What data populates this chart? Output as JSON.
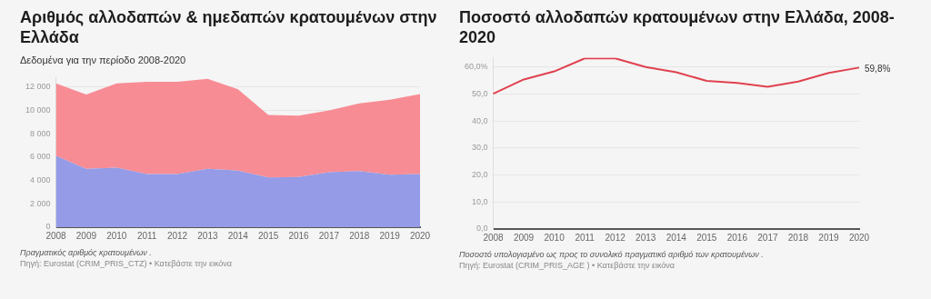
{
  "chart_data": [
    {
      "type": "area",
      "title": "Αριθμός αλλοδαπών & ημεδαπών κρατουμένων στην Ελλάδα",
      "subtitle": "Δεδομένα για την περίοδο 2008-2020",
      "categories": [
        "2008",
        "2009",
        "2010",
        "2011",
        "2012",
        "2013",
        "2014",
        "2015",
        "2016",
        "2017",
        "2018",
        "2019",
        "2020"
      ],
      "stacked": true,
      "series": [
        {
          "color": "#959be6",
          "values": [
            6100,
            5000,
            5100,
            4550,
            4550,
            5000,
            4850,
            4250,
            4300,
            4700,
            4800,
            4500,
            4550
          ]
        },
        {
          "color": "#f88c94",
          "values": [
            6200,
            6350,
            7200,
            7900,
            7900,
            7700,
            6950,
            5350,
            5250,
            5300,
            5800,
            6400,
            6850
          ]
        }
      ],
      "ylim": [
        0,
        12800
      ],
      "yticks": [
        0,
        {
          "value": 2000,
          "label": "2 000"
        },
        {
          "value": 4000,
          "label": "4 000"
        },
        {
          "value": 6000,
          "label": "6 000"
        },
        {
          "value": 8000,
          "label": "8 000"
        },
        {
          "value": 10000,
          "label": "10 000"
        },
        {
          "value": 12000,
          "label": "12 000"
        }
      ],
      "grid": "y",
      "annotations": [
        "Πραγματικός αριθμός κρατουμένων .",
        "Πηγή: Eurostat (CRIM_PRIS_CTZ) • Κατεβάστε την εικόνα"
      ]
    },
    {
      "type": "line",
      "title": "Ποσοστό αλλοδαπών κρατουμένων στην Ελλάδα, 2008-2020",
      "categories": [
        "2008",
        "2009",
        "2010",
        "2011",
        "2012",
        "2013",
        "2014",
        "2015",
        "2016",
        "2017",
        "2018",
        "2019",
        "2020"
      ],
      "series": [
        {
          "color": "#e0414f",
          "values": [
            50.1,
            55.4,
            58.4,
            63.2,
            63.2,
            60.0,
            58.1,
            54.9,
            54.1,
            52.7,
            54.6,
            57.8,
            59.8
          ],
          "value_labels": [
            null,
            null,
            null,
            null,
            null,
            null,
            null,
            null,
            null,
            null,
            null,
            null,
            "59,8%"
          ]
        }
      ],
      "ylim": [
        0,
        63.5
      ],
      "yticks": [
        {
          "value": 0,
          "label": "0,0"
        },
        {
          "value": 10,
          "label": "10,0"
        },
        {
          "value": 20,
          "label": "20,0"
        },
        {
          "value": 30,
          "label": "30,0"
        },
        {
          "value": 40,
          "label": "40,0"
        },
        {
          "value": 50,
          "label": "50,0"
        },
        {
          "value": 60,
          "label": "60,0%"
        }
      ],
      "grid": "y",
      "annotations": [
        "Ποσοστό υπολογισμένο ως προς το συνολικό πραγματικό αριθμό των κρατουμένων .",
        "Πηγή: Eurostat (CRIM_PRIS_AGE ) • Κατεβάστε την εικόνα"
      ]
    }
  ]
}
